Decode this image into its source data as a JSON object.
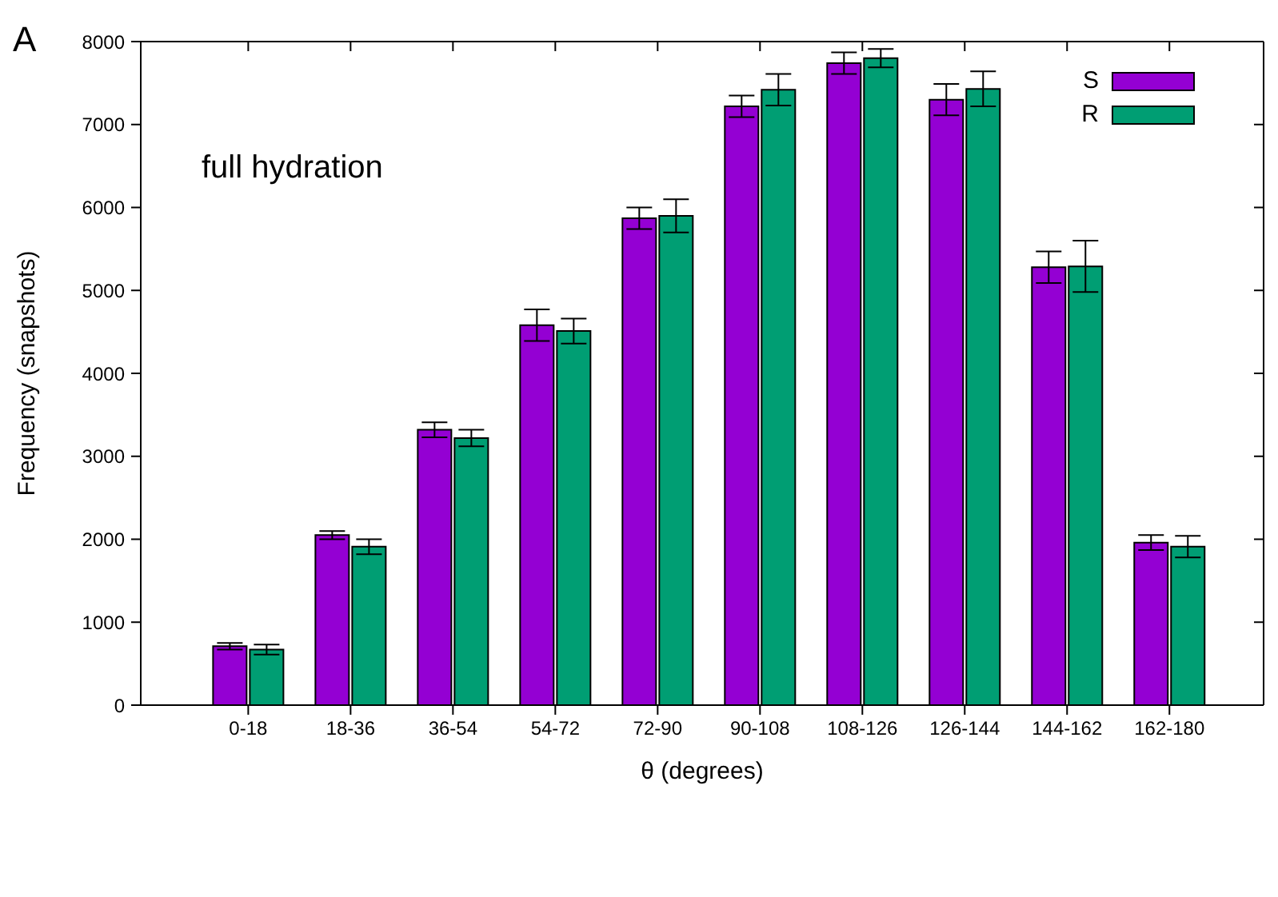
{
  "chart_data": {
    "type": "bar",
    "xlabel": "θ (degrees)",
    "ylabel": "Frequency (snapshots)",
    "categories": [
      "0-18",
      "18-36",
      "36-54",
      "54-72",
      "72-90",
      "90-108",
      "108-126",
      "126-144",
      "144-162",
      "162-180"
    ],
    "series": [
      {
        "name": "S",
        "color": "#9400d3",
        "values": [
          710,
          2050,
          3320,
          4580,
          5870,
          7220,
          7740,
          7300,
          5280,
          1960
        ],
        "errors": [
          40,
          50,
          90,
          190,
          130,
          130,
          130,
          190,
          190,
          90
        ]
      },
      {
        "name": "R",
        "color": "#009e73",
        "values": [
          670,
          1910,
          3220,
          4510,
          5900,
          7420,
          7800,
          7430,
          5290,
          1910
        ],
        "errors": [
          60,
          90,
          100,
          150,
          200,
          190,
          110,
          210,
          310,
          130
        ]
      }
    ],
    "ylim": [
      0,
      8000
    ],
    "yticks": [
      0,
      1000,
      2000,
      3000,
      4000,
      5000,
      6000,
      7000,
      8000
    ],
    "legend": "top right",
    "annotations": [
      "A",
      "full hydration"
    ]
  }
}
